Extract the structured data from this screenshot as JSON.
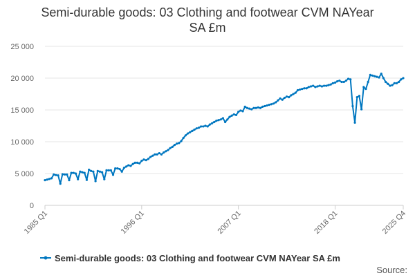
{
  "chart_data": {
    "type": "line",
    "title": "Semi-durable goods: 03 Clothing and footwear CVM NAYear SA £m",
    "title_lines": [
      "Semi-durable goods: 03 Clothing and footwear CVM NAYear",
      "SA £m"
    ],
    "xlabel": "",
    "ylabel": "",
    "ylim": [
      0,
      25000
    ],
    "yticks": [
      0,
      5000,
      10000,
      15000,
      20000,
      25000
    ],
    "ytick_labels": [
      "0",
      "5 000",
      "10 000",
      "15 000",
      "20 000",
      "25 000"
    ],
    "x_start": "1985 Q1",
    "x_end": "2025 Q4",
    "xticks": [
      {
        "index": 0,
        "label": "1985 Q1"
      },
      {
        "index": 44,
        "label": "1996 Q1"
      },
      {
        "index": 88,
        "label": "2007 Q1"
      },
      {
        "index": 132,
        "label": "2018 Q1"
      },
      {
        "index": 163,
        "label": "2025 Q4"
      }
    ],
    "grid": true,
    "legend_position": "bottom",
    "series": [
      {
        "name": "Semi-durable goods: 03 Clothing and footwear CVM NAYear SA £m",
        "color": "#0077c0",
        "values": [
          3950,
          4050,
          4150,
          4250,
          4850,
          4750,
          4700,
          3400,
          4900,
          4850,
          4850,
          3950,
          5100,
          5100,
          5000,
          4100,
          5300,
          5200,
          5100,
          4000,
          5600,
          5400,
          5300,
          3800,
          5400,
          5300,
          5200,
          4100,
          5500,
          5500,
          5500,
          4800,
          5800,
          5800,
          5700,
          5300,
          5900,
          6100,
          6300,
          6200,
          6500,
          6700,
          6700,
          6600,
          7000,
          7200,
          7100,
          7300,
          7600,
          7800,
          8000,
          8000,
          8200,
          8000,
          8300,
          8500,
          8700,
          9000,
          9200,
          9500,
          9700,
          9800,
          10100,
          10600,
          11000,
          11300,
          11500,
          11700,
          11900,
          12100,
          12200,
          12400,
          12400,
          12500,
          12400,
          12700,
          12900,
          13100,
          13300,
          13400,
          13500,
          13700,
          13100,
          13500,
          13900,
          14100,
          14300,
          14200,
          14700,
          14900,
          14800,
          15500,
          15300,
          15200,
          15100,
          15300,
          15300,
          15400,
          15300,
          15500,
          15600,
          15700,
          15800,
          15900,
          16000,
          16200,
          16500,
          16800,
          16600,
          16900,
          17100,
          17000,
          17300,
          17500,
          17700,
          18100,
          18200,
          18300,
          18400,
          18400,
          18600,
          18700,
          18800,
          18600,
          18700,
          18800,
          18700,
          18800,
          18800,
          18900,
          19000,
          19200,
          19300,
          19500,
          19600,
          19400,
          19400,
          19600,
          19900,
          19800,
          15600,
          13000,
          17000,
          17200,
          15100,
          18600,
          18300,
          19400,
          20500,
          20400,
          20300,
          20200,
          20100,
          20700,
          20000,
          19400,
          19100,
          18800,
          18900,
          19200,
          19200,
          19400,
          19800,
          20000
        ]
      }
    ],
    "source_label": "Source:"
  }
}
